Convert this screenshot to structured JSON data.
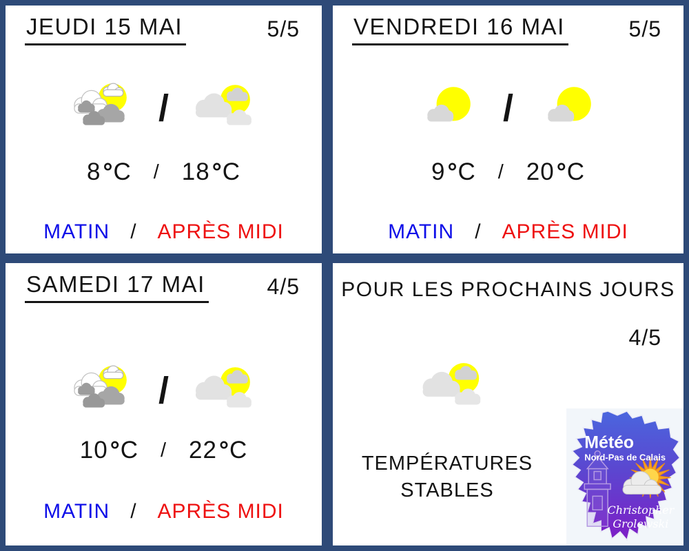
{
  "theme": {
    "frame_color": "#2e4a78",
    "panel_bg": "#ffffff",
    "ink": "#141414",
    "morning_color": "#0f0fe8",
    "afternoon_color": "#ee1111",
    "sun_yellow": "#ffff00",
    "logo_blue": "#4a66de",
    "logo_purple": "#7e1ec6",
    "logo_sun_orange": "#f6a01e"
  },
  "panels": [
    {
      "title": "JEUDI 15 MAI",
      "confidence": "5/5",
      "icons": {
        "morning": "sun-behind-clouds-icon",
        "afternoon": "sun-with-clouds-icon",
        "separator": "/"
      },
      "temperatures": {
        "morning_value": "8",
        "afternoon_value": "18",
        "degree_symbol": "°",
        "unit": "C",
        "separator": "/"
      },
      "labels": {
        "morning": "MATIN",
        "separator": "/",
        "afternoon": "APRÈS MIDI"
      }
    },
    {
      "title": "VENDREDI 16 MAI",
      "confidence": "5/5",
      "icons": {
        "morning": "sunny-small-cloud-icon",
        "afternoon": "sunny-small-cloud-icon",
        "separator": "/"
      },
      "temperatures": {
        "morning_value": "9",
        "afternoon_value": "20",
        "degree_symbol": "°",
        "unit": "C",
        "separator": "/"
      },
      "labels": {
        "morning": "MATIN",
        "separator": "/",
        "afternoon": "APRÈS MIDI"
      }
    },
    {
      "title": "SAMEDI 17 MAI",
      "confidence": "4/5",
      "icons": {
        "morning": "sun-behind-clouds-icon",
        "afternoon": "sun-with-clouds-icon",
        "separator": "/"
      },
      "temperatures": {
        "morning_value": "10",
        "afternoon_value": "22",
        "degree_symbol": "°",
        "unit": "C",
        "separator": "/"
      },
      "labels": {
        "morning": "MATIN",
        "separator": "/",
        "afternoon": "APRÈS MIDI"
      }
    }
  ],
  "outlook": {
    "title": "POUR LES PROCHAINS JOURS",
    "confidence": "4/5",
    "icon": "sun-with-clouds-icon",
    "message": [
      "TEMPÉRATURES",
      "STABLES"
    ],
    "logo": {
      "brand": "Météo",
      "region": "Nord-Pas de Calais",
      "signature": [
        "Christopher",
        "Grolewski"
      ]
    }
  }
}
